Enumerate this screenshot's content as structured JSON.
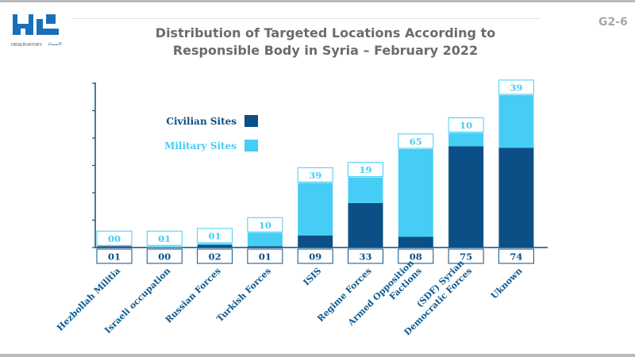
{
  "header": {
    "title_line1": "Distribution of Targeted Locations According to",
    "title_line2": "Responsible Body in Syria – February 2022",
    "code": "G2-6",
    "logo_brand": "مرصد",
    "logo_text": "OBSERVATORY",
    "logo_sub": "الاستبداد"
  },
  "colors": {
    "civilian": "#0b4f86",
    "military": "#45cdf6",
    "accent": "#1b6fb8",
    "axis": "#0d4f7c"
  },
  "chart_data": {
    "type": "bar",
    "stacked": true,
    "title": "Distribution of Targeted Locations According to Responsible Body in Syria – February 2022",
    "categories": [
      "Hezbollah Militia",
      "Israeli occupation",
      "Russian Forces",
      "Turkish Forces",
      "ISIS",
      "Regime Forces",
      "Armed Opposition Factions",
      "(SDF) Syrian Democratic Forces",
      "Uknown"
    ],
    "category_lines": [
      [
        "Hezbollah Militia"
      ],
      [
        "Israeli occupation"
      ],
      [
        "Russian Forces"
      ],
      [
        "Turkish Forces"
      ],
      [
        "ISIS"
      ],
      [
        "Regime Forces"
      ],
      [
        "Armed Opposition",
        "Factions"
      ],
      [
        "(SDF) Syrian",
        "Democratic Forces"
      ],
      [
        "Uknown"
      ]
    ],
    "series": [
      {
        "name": "Civilian Sites",
        "values": [
          1,
          0,
          2,
          1,
          9,
          33,
          8,
          75,
          74
        ],
        "labels": [
          "01",
          "00",
          "02",
          "01",
          "09",
          "33",
          "08",
          "75",
          "74"
        ]
      },
      {
        "name": "Military Sites",
        "values": [
          0,
          1,
          1,
          10,
          39,
          19,
          65,
          10,
          39
        ],
        "labels": [
          "00",
          "01",
          "01",
          "10",
          "39",
          "19",
          "65",
          "10",
          "39"
        ]
      }
    ],
    "ylim": [
      0,
      120
    ],
    "grid": false,
    "legend": "top-left"
  }
}
